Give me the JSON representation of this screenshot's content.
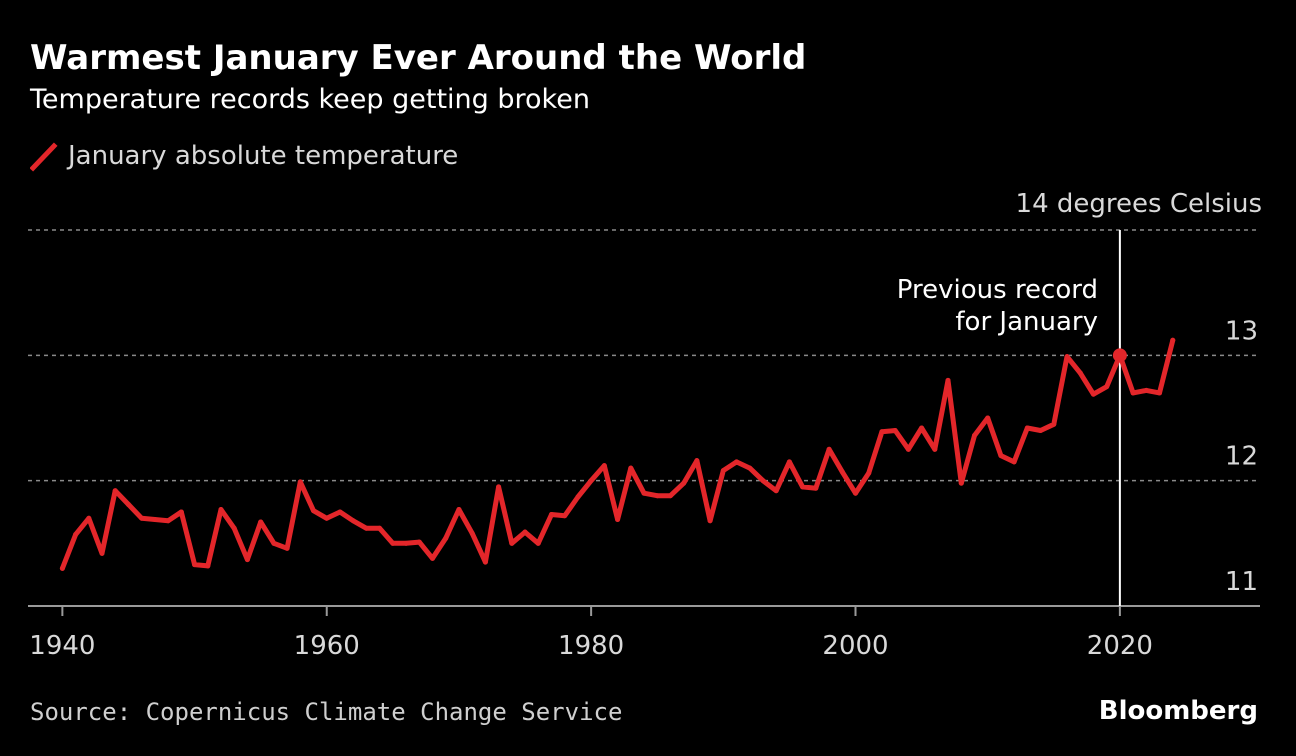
{
  "header": {
    "title": "Warmest January Ever Around the World",
    "subtitle": "Temperature records keep getting broken"
  },
  "footer": {
    "source": "Source: Copernicus Climate Change Service",
    "brand": "Bloomberg"
  },
  "colors": {
    "background": "#000000",
    "line": "#e3262a",
    "grid": "#8a8a8a",
    "text": "#ffffff"
  },
  "chart_data": {
    "type": "line",
    "title": "Warmest January Ever Around the World",
    "subtitle": "Temperature records keep getting broken",
    "unit_label": "14 degrees Celsius",
    "x_ticks": [
      1940,
      1960,
      1980,
      2000,
      2020
    ],
    "y_ticks": [
      11,
      12,
      13
    ],
    "xlim": [
      1937.4,
      2030.6
    ],
    "ylim": [
      11.0,
      14.0
    ],
    "grid": true,
    "legend_position": "top-left",
    "series": [
      {
        "name": "January absolute temperature",
        "x": [
          1940,
          1941,
          1942,
          1943,
          1944,
          1945,
          1946,
          1947,
          1948,
          1949,
          1950,
          1951,
          1952,
          1953,
          1954,
          1955,
          1956,
          1957,
          1958,
          1959,
          1960,
          1961,
          1962,
          1963,
          1964,
          1965,
          1966,
          1967,
          1968,
          1969,
          1970,
          1971,
          1972,
          1973,
          1974,
          1975,
          1976,
          1977,
          1978,
          1979,
          1980,
          1981,
          1982,
          1983,
          1984,
          1985,
          1986,
          1987,
          1988,
          1989,
          1990,
          1991,
          1992,
          1993,
          1994,
          1995,
          1996,
          1997,
          1998,
          1999,
          2000,
          2001,
          2002,
          2003,
          2004,
          2005,
          2006,
          2007,
          2008,
          2009,
          2010,
          2011,
          2012,
          2013,
          2014,
          2015,
          2016,
          2017,
          2018,
          2019,
          2020,
          2021,
          2022,
          2023,
          2024
        ],
        "y": [
          11.3,
          11.57,
          11.7,
          11.42,
          11.92,
          11.81,
          11.7,
          11.69,
          11.68,
          11.75,
          11.33,
          11.32,
          11.77,
          11.62,
          11.37,
          11.67,
          11.5,
          11.46,
          11.99,
          11.76,
          11.7,
          11.75,
          11.68,
          11.62,
          11.62,
          11.5,
          11.5,
          11.51,
          11.38,
          11.54,
          11.77,
          11.58,
          11.35,
          11.95,
          11.5,
          11.59,
          11.5,
          11.73,
          11.72,
          11.87,
          12.0,
          12.12,
          11.69,
          12.1,
          11.9,
          11.88,
          11.88,
          11.98,
          12.16,
          11.68,
          12.08,
          12.15,
          12.1,
          12.0,
          11.92,
          12.15,
          11.95,
          11.94,
          12.25,
          12.07,
          11.9,
          12.06,
          12.39,
          12.4,
          12.25,
          12.42,
          12.25,
          12.8,
          11.98,
          12.36,
          12.5,
          12.2,
          12.15,
          12.42,
          12.4,
          12.45,
          12.99,
          12.86,
          12.69,
          12.75,
          13.0,
          12.7,
          12.72,
          12.7,
          13.12
        ]
      }
    ],
    "annotation": {
      "text_line1": "Previous record",
      "text_line2": "for January",
      "x": 2020,
      "y": 13.0
    }
  }
}
